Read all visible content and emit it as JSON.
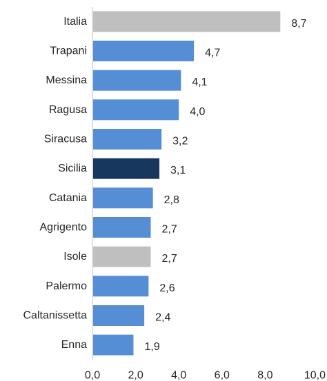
{
  "chart_data": {
    "type": "bar",
    "orientation": "horizontal",
    "categories": [
      "Italia",
      "Trapani",
      "Messina",
      "Ragusa",
      "Siracusa",
      "Sicilia",
      "Catania",
      "Agrigento",
      "Isole",
      "Palermo",
      "Caltanissetta",
      "Enna"
    ],
    "values": [
      8.7,
      4.7,
      4.1,
      4.0,
      3.2,
      3.1,
      2.8,
      2.7,
      2.7,
      2.6,
      2.4,
      1.9
    ],
    "value_labels": [
      "8,7",
      "4,7",
      "4,1",
      "4,0",
      "3,2",
      "3,1",
      "2,8",
      "2,7",
      "2,7",
      "2,6",
      "2,4",
      "1,9"
    ],
    "bar_colors": [
      "#bfbfbf",
      "#558ed5",
      "#558ed5",
      "#558ed5",
      "#558ed5",
      "#17375e",
      "#558ed5",
      "#558ed5",
      "#bfbfbf",
      "#558ed5",
      "#558ed5",
      "#558ed5"
    ],
    "xlim": [
      0,
      10
    ],
    "x_ticks": [
      0,
      2,
      4,
      6,
      8,
      10
    ],
    "x_tick_labels": [
      "0,0",
      "2,0",
      "4,0",
      "6,0",
      "8,0",
      "10,0"
    ],
    "grid": false,
    "title": "",
    "xlabel": "",
    "ylabel": ""
  }
}
